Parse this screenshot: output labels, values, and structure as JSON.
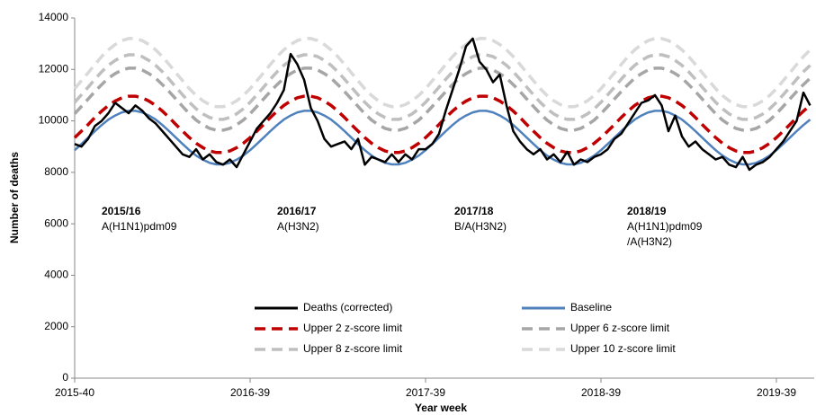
{
  "chart_data": {
    "type": "line",
    "y_label": "Number of deaths",
    "x_label": "Year week",
    "ylim": [
      0,
      14000
    ],
    "yticks": [
      0,
      2000,
      4000,
      6000,
      8000,
      10000,
      12000,
      14000
    ],
    "legend": "lower center",
    "categories": [
      "2015-40",
      null,
      null,
      null,
      null,
      null,
      null,
      null,
      null,
      null,
      null,
      null,
      null,
      null,
      null,
      null,
      null,
      null,
      null,
      null,
      null,
      null,
      null,
      null,
      null,
      null,
      "2016-39",
      null,
      null,
      null,
      null,
      null,
      null,
      null,
      null,
      null,
      null,
      null,
      null,
      null,
      null,
      null,
      null,
      null,
      null,
      null,
      null,
      null,
      null,
      null,
      null,
      null,
      "2017-39",
      null,
      null,
      null,
      null,
      null,
      null,
      null,
      null,
      null,
      null,
      null,
      null,
      null,
      null,
      null,
      null,
      null,
      null,
      null,
      null,
      null,
      null,
      null,
      null,
      null,
      "2018-39",
      null,
      null,
      null,
      null,
      null,
      null,
      null,
      null,
      null,
      null,
      null,
      null,
      null,
      null,
      null,
      null,
      null,
      null,
      null,
      null,
      null,
      null,
      null,
      null,
      null,
      "2019-39",
      null,
      null,
      null,
      null,
      null
    ],
    "series": [
      {
        "name": "Deaths (corrected)",
        "color": "#000000",
        "dashed": false,
        "values": [
          9100,
          9000,
          9300,
          9800,
          10000,
          10300,
          10700,
          10500,
          10300,
          10600,
          10400,
          10100,
          9900,
          9600,
          9300,
          9000,
          8700,
          8600,
          8900,
          8500,
          8700,
          8400,
          8300,
          8500,
          8200,
          8700,
          9200,
          9700,
          10000,
          10300,
          10700,
          11200,
          12600,
          12200,
          11600,
          10500,
          10000,
          9300,
          9000,
          9100,
          9200,
          8900,
          9300,
          8300,
          8600,
          8500,
          8400,
          8700,
          8400,
          8700,
          8500,
          8900,
          8900,
          9100,
          9500,
          10400,
          11200,
          12000,
          12900,
          13200,
          12300,
          12000,
          11500,
          11800,
          10600,
          9600,
          9200,
          8900,
          8700,
          8900,
          8500,
          8700,
          8400,
          8800,
          8300,
          8500,
          8400,
          8600,
          8700,
          8900,
          9300,
          9500,
          9900,
          10300,
          10700,
          10800,
          11000,
          10600,
          9600,
          10200,
          9400,
          9000,
          9200,
          8900,
          8700,
          8500,
          8600,
          8300,
          8200,
          8600,
          8100,
          8300,
          8400,
          8600,
          8900,
          9200,
          9600,
          10000,
          11100,
          10600
        ]
      },
      {
        "name": "Baseline",
        "color": "#4f81bd",
        "dashed": false,
        "values": [
          8860,
          9100,
          9350,
          9600,
          9840,
          10050,
          10210,
          10330,
          10390,
          10390,
          10330,
          10210,
          10050,
          9840,
          9600,
          9350,
          9100,
          8860,
          8650,
          8490,
          8370,
          8310,
          8310,
          8370,
          8490,
          8650,
          8860,
          9100,
          9350,
          9600,
          9840,
          10050,
          10210,
          10330,
          10390,
          10390,
          10330,
          10210,
          10050,
          9840,
          9600,
          9350,
          9100,
          8860,
          8650,
          8490,
          8370,
          8310,
          8310,
          8370,
          8490,
          8650,
          8860,
          9100,
          9350,
          9600,
          9840,
          10050,
          10210,
          10330,
          10390,
          10390,
          10330,
          10210,
          10050,
          9840,
          9600,
          9350,
          9100,
          8860,
          8650,
          8490,
          8370,
          8310,
          8310,
          8370,
          8490,
          8650,
          8860,
          9100,
          9350,
          9600,
          9840,
          10050,
          10210,
          10330,
          10390,
          10390,
          10330,
          10210,
          10050,
          9840,
          9600,
          9350,
          9100,
          8860,
          8650,
          8490,
          8370,
          8310,
          8310,
          8370,
          8490,
          8650,
          8860,
          9100,
          9350,
          9600,
          9840,
          10050
        ]
      },
      {
        "name": "Upper 2 z-score limit",
        "color": "#c00000",
        "dashed": true,
        "values": [
          9350,
          9600,
          9860,
          10130,
          10380,
          10600,
          10770,
          10900,
          10960,
          10960,
          10900,
          10770,
          10600,
          10380,
          10130,
          9860,
          9600,
          9350,
          9130,
          8960,
          8830,
          8770,
          8770,
          8830,
          8960,
          9130,
          9350,
          9600,
          9860,
          10130,
          10380,
          10600,
          10770,
          10900,
          10960,
          10960,
          10900,
          10770,
          10600,
          10380,
          10130,
          9860,
          9600,
          9350,
          9130,
          8960,
          8830,
          8770,
          8770,
          8830,
          8960,
          9130,
          9350,
          9600,
          9860,
          10130,
          10380,
          10600,
          10770,
          10900,
          10960,
          10960,
          10900,
          10770,
          10600,
          10380,
          10130,
          9860,
          9600,
          9350,
          9130,
          8960,
          8830,
          8770,
          8770,
          8830,
          8960,
          9130,
          9350,
          9600,
          9860,
          10130,
          10380,
          10600,
          10770,
          10900,
          10960,
          10960,
          10900,
          10770,
          10600,
          10380,
          10130,
          9860,
          9600,
          9350,
          9130,
          8960,
          8830,
          8770,
          8770,
          8830,
          8960,
          9130,
          9350,
          9600,
          9860,
          10130,
          10380,
          10600
        ]
      },
      {
        "name": "Upper 6 z-score limit",
        "color": "#a6a6a6",
        "dashed": true,
        "values": [
          10280,
          10560,
          10850,
          11140,
          11410,
          11660,
          11840,
          11980,
          12050,
          12050,
          11980,
          11840,
          11660,
          11410,
          11140,
          10850,
          10560,
          10280,
          10030,
          9850,
          9710,
          9640,
          9640,
          9710,
          9850,
          10030,
          10280,
          10560,
          10850,
          11140,
          11410,
          11660,
          11840,
          11980,
          12050,
          12050,
          11980,
          11840,
          11660,
          11410,
          11140,
          10850,
          10560,
          10280,
          10030,
          9850,
          9710,
          9640,
          9640,
          9710,
          9850,
          10030,
          10280,
          10560,
          10850,
          11140,
          11410,
          11660,
          11840,
          11980,
          12050,
          12050,
          11980,
          11840,
          11660,
          11410,
          11140,
          10850,
          10560,
          10280,
          10030,
          9850,
          9710,
          9640,
          9640,
          9710,
          9850,
          10030,
          10280,
          10560,
          10850,
          11140,
          11410,
          11660,
          11840,
          11980,
          12050,
          12050,
          11980,
          11840,
          11660,
          11410,
          11140,
          10850,
          10560,
          10280,
          10030,
          9850,
          9710,
          9640,
          9640,
          9710,
          9850,
          10030,
          10280,
          10560,
          10850,
          11140,
          11410,
          11660
        ]
      },
      {
        "name": "Upper 8 z-score limit",
        "color": "#bfbfbf",
        "dashed": true,
        "values": [
          10720,
          11010,
          11310,
          11620,
          11910,
          12160,
          12350,
          12500,
          12570,
          12570,
          12500,
          12350,
          12160,
          11910,
          11620,
          11310,
          11010,
          10720,
          10470,
          10270,
          10130,
          10060,
          10060,
          10130,
          10270,
          10470,
          10720,
          11010,
          11310,
          11620,
          11910,
          12160,
          12350,
          12500,
          12570,
          12570,
          12500,
          12350,
          12160,
          11910,
          11620,
          11310,
          11010,
          10720,
          10470,
          10270,
          10130,
          10060,
          10060,
          10130,
          10270,
          10470,
          10720,
          11010,
          11310,
          11620,
          11910,
          12160,
          12350,
          12500,
          12570,
          12570,
          12500,
          12350,
          12160,
          11910,
          11620,
          11310,
          11010,
          10720,
          10470,
          10270,
          10130,
          10060,
          10060,
          10130,
          10270,
          10470,
          10720,
          11010,
          11310,
          11620,
          11910,
          12160,
          12350,
          12500,
          12570,
          12570,
          12500,
          12350,
          12160,
          11910,
          11620,
          11310,
          11010,
          10720,
          10470,
          10270,
          10130,
          10060,
          10060,
          10130,
          10270,
          10470,
          10720,
          11010,
          11310,
          11620,
          11910,
          12160
        ]
      },
      {
        "name": "Upper 10 z-score limit",
        "color": "#d9d9d9",
        "dashed": true,
        "values": [
          11250,
          11560,
          11870,
          12190,
          12500,
          12760,
          12970,
          13120,
          13200,
          13200,
          13120,
          12970,
          12760,
          12500,
          12190,
          11870,
          11560,
          11250,
          10990,
          10780,
          10630,
          10550,
          10550,
          10630,
          10780,
          10990,
          11250,
          11560,
          11870,
          12190,
          12500,
          12760,
          12970,
          13120,
          13200,
          13200,
          13120,
          12970,
          12760,
          12500,
          12190,
          11870,
          11560,
          11250,
          10990,
          10780,
          10630,
          10550,
          10550,
          10630,
          10780,
          10990,
          11250,
          11560,
          11870,
          12190,
          12500,
          12760,
          12970,
          13120,
          13200,
          13200,
          13120,
          12970,
          12760,
          12500,
          12190,
          11870,
          11560,
          11250,
          10990,
          10780,
          10630,
          10550,
          10550,
          10630,
          10780,
          10990,
          11250,
          11560,
          11870,
          12190,
          12500,
          12760,
          12970,
          13120,
          13200,
          13200,
          13120,
          12970,
          12760,
          12500,
          12190,
          11870,
          11560,
          11250,
          10990,
          10780,
          10630,
          10550,
          10550,
          10630,
          10780,
          10990,
          11250,
          11560,
          11870,
          12190,
          12500,
          12760
        ]
      }
    ],
    "annotations": [
      {
        "title": "2015/16",
        "lines": [
          "A(H1N1)pdm09"
        ]
      },
      {
        "title": "2016/17",
        "lines": [
          "A(H3N2)"
        ]
      },
      {
        "title": "2017/18",
        "lines": [
          "B/A(H3N2)"
        ]
      },
      {
        "title": "2018/19",
        "lines": [
          "A(H1N1)pdm09",
          "/A(H3N2)"
        ]
      }
    ]
  }
}
